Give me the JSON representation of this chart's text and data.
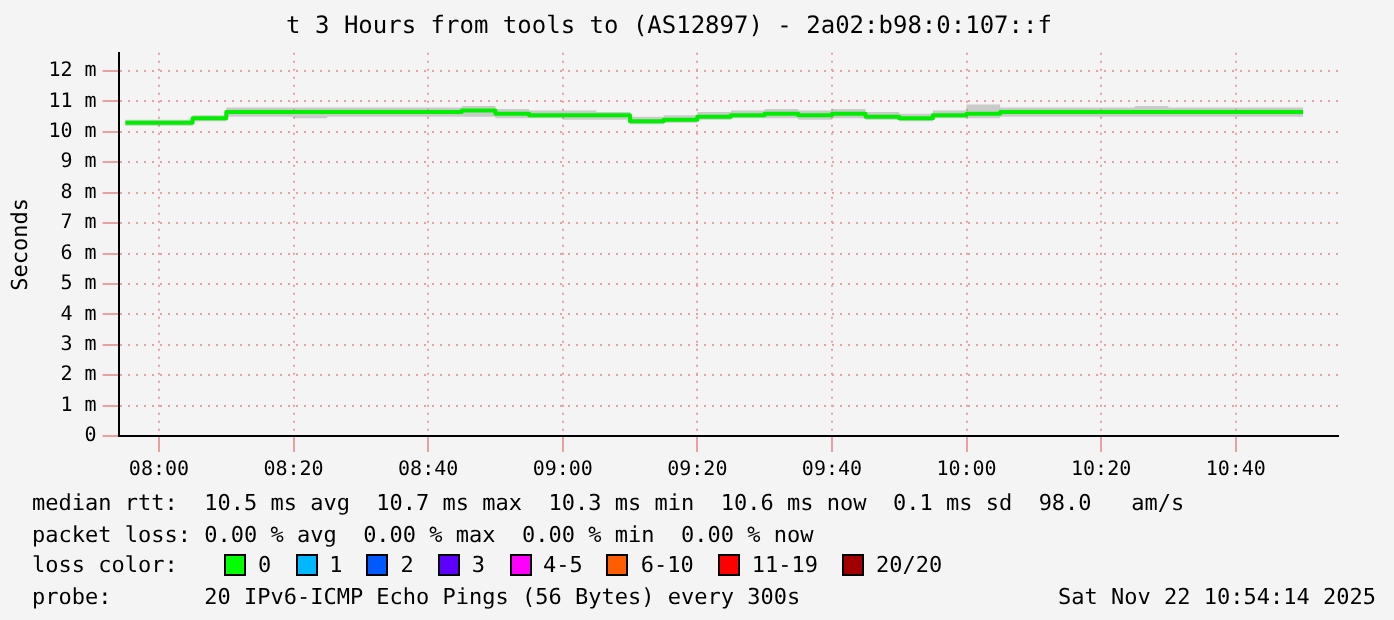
{
  "chart_data": {
    "type": "step",
    "title": "t 3 Hours from tools to (AS12897) - 2a02:b98:0:107::f",
    "ylabel": "Seconds",
    "x": [
      7.9167,
      8,
      8.0833,
      8.1667,
      8.25,
      8.3333,
      8.4167,
      8.5,
      8.5833,
      8.6667,
      8.75,
      8.8333,
      8.9167,
      9,
      9.0833,
      9.1667,
      9.25,
      9.3333,
      9.4167,
      9.5,
      9.5833,
      9.6667,
      9.75,
      9.8333,
      9.9167,
      10,
      10.0833,
      10.1667,
      10.25,
      10.3333,
      10.4167,
      10.5,
      10.5833,
      10.6667,
      10.75,
      10.8333
    ],
    "series": [
      {
        "color": "#00ee00",
        "values": [
          10.3,
          10.3,
          10.3,
          10.45,
          10.65,
          10.65,
          10.65,
          10.65,
          10.65,
          10.65,
          10.65,
          10.7,
          10.6,
          10.55,
          10.55,
          10.55,
          10.35,
          10.4,
          10.5,
          10.55,
          10.6,
          10.55,
          10.6,
          10.5,
          10.45,
          10.55,
          10.6,
          10.65,
          10.65,
          10.65,
          10.65,
          10.65,
          10.65,
          10.65,
          10.65,
          10.65
        ],
        "lower": [
          10.2,
          10.2,
          10.2,
          10.35,
          10.5,
          10.5,
          10.45,
          10.5,
          10.5,
          10.5,
          10.5,
          10.5,
          10.45,
          10.45,
          10.4,
          10.4,
          10.25,
          10.3,
          10.4,
          10.45,
          10.45,
          10.4,
          10.45,
          10.4,
          10.35,
          10.45,
          10.45,
          10.5,
          10.5,
          10.5,
          10.5,
          10.5,
          10.5,
          10.5,
          10.5,
          10.5
        ],
        "upper": [
          10.6,
          10.4,
          10.4,
          10.55,
          10.8,
          10.8,
          10.8,
          10.8,
          10.8,
          10.8,
          10.8,
          10.85,
          10.75,
          10.7,
          10.7,
          10.65,
          10.5,
          10.55,
          10.65,
          10.7,
          10.75,
          10.7,
          10.75,
          10.65,
          10.6,
          10.7,
          10.9,
          10.8,
          10.8,
          10.8,
          10.8,
          10.85,
          10.8,
          10.8,
          10.8,
          10.8
        ]
      }
    ],
    "xlim": [
      7.9,
      10.92
    ],
    "xticks": [
      {
        "value": 8,
        "label": "08:00"
      },
      {
        "value": 8.3333,
        "label": "08:20"
      },
      {
        "value": 8.6667,
        "label": "08:40"
      },
      {
        "value": 9,
        "label": "09:00"
      },
      {
        "value": 9.3333,
        "label": "09:20"
      },
      {
        "value": 9.6667,
        "label": "09:40"
      },
      {
        "value": 10,
        "label": "10:00"
      },
      {
        "value": 10.3333,
        "label": "10:20"
      },
      {
        "value": 10.6667,
        "label": "10:40"
      }
    ],
    "ylim": [
      0,
      12.6
    ],
    "yticks": [
      0,
      {
        "value": 1,
        "label": "1 m"
      },
      {
        "value": 2,
        "label": "2 m"
      },
      {
        "value": 3,
        "label": "3 m"
      },
      {
        "value": 4,
        "label": "4 m"
      },
      {
        "value": 5,
        "label": "5 m"
      },
      {
        "value": 6,
        "label": "6 m"
      },
      {
        "value": 7,
        "label": "7 m"
      },
      {
        "value": 8,
        "label": "8 m"
      },
      {
        "value": 9,
        "label": "9 m"
      },
      {
        "value": 10,
        "label": "10 m"
      },
      {
        "value": 11,
        "label": "11 m"
      },
      {
        "value": 12,
        "label": "12 m"
      }
    ],
    "grid": true,
    "legend": false,
    "annotations": [
      "median rtt:  10.5 ms avg  10.7 ms max  10.3 ms min  10.6 ms now  0.1 ms sd  98.0   am/s",
      "packet loss: 0.00 % avg  0.00 % max  0.00 % min  0.00 % now",
      "loss color:",
      "0",
      "1",
      "2",
      "3",
      "4-5",
      "6-10",
      "11-19",
      "20/20",
      "probe:       20 IPv6-ICMP Echo Pings (56 Bytes) every 300s",
      "Sat Nov 22 10:54:14 2025"
    ]
  }
}
